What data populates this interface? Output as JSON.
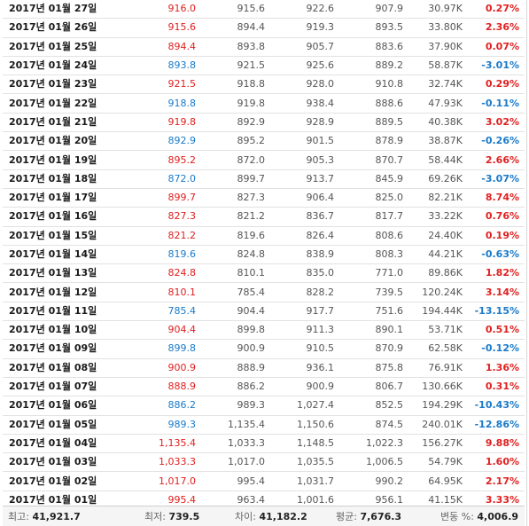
{
  "colors": {
    "up": "#e02020",
    "down": "#1a7ac9"
  },
  "rows": [
    {
      "date": "2017년 01월 27일",
      "close": "916.0",
      "open": "915.6",
      "high": "922.6",
      "low": "907.9",
      "volume": "30.97K",
      "change": "0.27%",
      "dir": "up"
    },
    {
      "date": "2017년 01월 26일",
      "close": "915.6",
      "open": "894.4",
      "high": "919.3",
      "low": "893.5",
      "volume": "33.80K",
      "change": "2.36%",
      "dir": "up"
    },
    {
      "date": "2017년 01월 25일",
      "close": "894.4",
      "open": "893.8",
      "high": "905.7",
      "low": "883.6",
      "volume": "37.90K",
      "change": "0.07%",
      "dir": "up"
    },
    {
      "date": "2017년 01월 24일",
      "close": "893.8",
      "open": "921.5",
      "high": "925.6",
      "low": "889.2",
      "volume": "58.87K",
      "change": "-3.01%",
      "dir": "down"
    },
    {
      "date": "2017년 01월 23일",
      "close": "921.5",
      "open": "918.8",
      "high": "928.0",
      "low": "910.8",
      "volume": "32.74K",
      "change": "0.29%",
      "dir": "up"
    },
    {
      "date": "2017년 01월 22일",
      "close": "918.8",
      "open": "919.8",
      "high": "938.4",
      "low": "888.6",
      "volume": "47.93K",
      "change": "-0.11%",
      "dir": "down"
    },
    {
      "date": "2017년 01월 21일",
      "close": "919.8",
      "open": "892.9",
      "high": "928.9",
      "low": "889.5",
      "volume": "40.38K",
      "change": "3.02%",
      "dir": "up"
    },
    {
      "date": "2017년 01월 20일",
      "close": "892.9",
      "open": "895.2",
      "high": "901.5",
      "low": "878.9",
      "volume": "38.87K",
      "change": "-0.26%",
      "dir": "down"
    },
    {
      "date": "2017년 01월 19일",
      "close": "895.2",
      "open": "872.0",
      "high": "905.3",
      "low": "870.7",
      "volume": "58.44K",
      "change": "2.66%",
      "dir": "up"
    },
    {
      "date": "2017년 01월 18일",
      "close": "872.0",
      "open": "899.7",
      "high": "913.7",
      "low": "845.9",
      "volume": "69.26K",
      "change": "-3.07%",
      "dir": "down"
    },
    {
      "date": "2017년 01월 17일",
      "close": "899.7",
      "open": "827.3",
      "high": "906.4",
      "low": "825.0",
      "volume": "82.21K",
      "change": "8.74%",
      "dir": "up"
    },
    {
      "date": "2017년 01월 16일",
      "close": "827.3",
      "open": "821.2",
      "high": "836.7",
      "low": "817.7",
      "volume": "33.22K",
      "change": "0.76%",
      "dir": "up"
    },
    {
      "date": "2017년 01월 15일",
      "close": "821.2",
      "open": "819.6",
      "high": "826.4",
      "low": "808.6",
      "volume": "24.40K",
      "change": "0.19%",
      "dir": "up"
    },
    {
      "date": "2017년 01월 14일",
      "close": "819.6",
      "open": "824.8",
      "high": "838.9",
      "low": "808.3",
      "volume": "44.21K",
      "change": "-0.63%",
      "dir": "down"
    },
    {
      "date": "2017년 01월 13일",
      "close": "824.8",
      "open": "810.1",
      "high": "835.0",
      "low": "771.0",
      "volume": "89.86K",
      "change": "1.82%",
      "dir": "up"
    },
    {
      "date": "2017년 01월 12일",
      "close": "810.1",
      "open": "785.4",
      "high": "828.2",
      "low": "739.5",
      "volume": "120.24K",
      "change": "3.14%",
      "dir": "up"
    },
    {
      "date": "2017년 01월 11일",
      "close": "785.4",
      "open": "904.4",
      "high": "917.7",
      "low": "751.6",
      "volume": "194.44K",
      "change": "-13.15%",
      "dir": "down"
    },
    {
      "date": "2017년 01월 10일",
      "close": "904.4",
      "open": "899.8",
      "high": "911.3",
      "low": "890.1",
      "volume": "53.71K",
      "change": "0.51%",
      "dir": "up"
    },
    {
      "date": "2017년 01월 09일",
      "close": "899.8",
      "open": "900.9",
      "high": "910.5",
      "low": "870.9",
      "volume": "62.58K",
      "change": "-0.12%",
      "dir": "down"
    },
    {
      "date": "2017년 01월 08일",
      "close": "900.9",
      "open": "888.9",
      "high": "936.1",
      "low": "875.8",
      "volume": "76.91K",
      "change": "1.36%",
      "dir": "up"
    },
    {
      "date": "2017년 01월 07일",
      "close": "888.9",
      "open": "886.2",
      "high": "900.9",
      "low": "806.7",
      "volume": "130.66K",
      "change": "0.31%",
      "dir": "up"
    },
    {
      "date": "2017년 01월 06일",
      "close": "886.2",
      "open": "989.3",
      "high": "1,027.4",
      "low": "852.5",
      "volume": "194.29K",
      "change": "-10.43%",
      "dir": "down"
    },
    {
      "date": "2017년 01월 05일",
      "close": "989.3",
      "open": "1,135.4",
      "high": "1,150.6",
      "low": "874.5",
      "volume": "240.01K",
      "change": "-12.86%",
      "dir": "down"
    },
    {
      "date": "2017년 01월 04일",
      "close": "1,135.4",
      "open": "1,033.3",
      "high": "1,148.5",
      "low": "1,022.3",
      "volume": "156.27K",
      "change": "9.88%",
      "dir": "up"
    },
    {
      "date": "2017년 01월 03일",
      "close": "1,033.3",
      "open": "1,017.0",
      "high": "1,035.5",
      "low": "1,006.5",
      "volume": "54.79K",
      "change": "1.60%",
      "dir": "up"
    },
    {
      "date": "2017년 01월 02일",
      "close": "1,017.0",
      "open": "995.4",
      "high": "1,031.7",
      "low": "990.2",
      "volume": "64.95K",
      "change": "2.17%",
      "dir": "up"
    },
    {
      "date": "2017년 01월 01일",
      "close": "995.4",
      "open": "963.4",
      "high": "1,001.6",
      "low": "956.1",
      "volume": "41.15K",
      "change": "3.33%",
      "dir": "up"
    }
  ],
  "footer": {
    "max_label": "최고:",
    "max_value": "41,921.7",
    "min_label": "최저:",
    "min_value": "739.5",
    "diff_label": "차이:",
    "diff_value": "41,182.2",
    "avg_label": "평균:",
    "avg_value": "7,676.3",
    "var_label": "변동 %:",
    "var_value": "4,006.9"
  }
}
